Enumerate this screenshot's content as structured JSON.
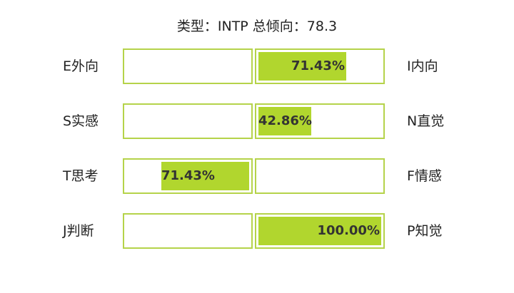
{
  "title": "类型：INTP 总倾向：78.3",
  "accent_color": "#b1d62e",
  "border_color": "#b5d34a",
  "dimensions": [
    {
      "left_label": "E外向",
      "right_label": "I内向",
      "side": "right",
      "percent_label": "71.43%",
      "fraction": 0.7143
    },
    {
      "left_label": "S实感",
      "right_label": "N直觉",
      "side": "right",
      "percent_label": "42.86%",
      "fraction": 0.4286
    },
    {
      "left_label": "T思考",
      "right_label": "F情感",
      "side": "left",
      "percent_label": "71.43%",
      "fraction": 0.7143
    },
    {
      "left_label": "J判断",
      "right_label": "P知觉",
      "side": "right",
      "percent_label": "100.00%",
      "fraction": 1.0
    }
  ]
}
